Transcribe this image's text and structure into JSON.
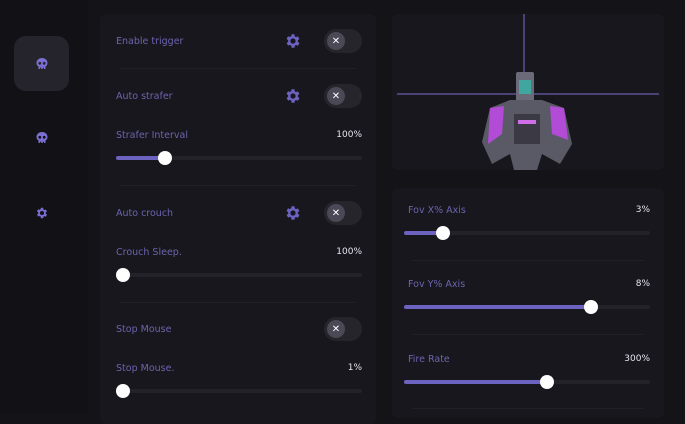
{
  "accent": "#6c62bf",
  "sidebar": {
    "items": [
      {
        "icon": "skull-icon",
        "active": true
      },
      {
        "icon": "skull-icon",
        "active": false
      },
      {
        "icon": "gear-icon",
        "active": false
      }
    ]
  },
  "left": {
    "enable_trigger": {
      "label": "Enable trigger",
      "on": false
    },
    "auto_strafer": {
      "label": "Auto strafer",
      "on": false
    },
    "strafer_interval": {
      "label": "Strafer Interval",
      "value": "100%",
      "fraction": 0.2
    },
    "auto_crouch": {
      "label": "Auto crouch",
      "on": false
    },
    "crouch_sleep": {
      "label": "Crouch Sleep.",
      "value": "100%",
      "fraction": 0
    },
    "stop_mouse": {
      "label": "Stop Mouse",
      "on": false
    },
    "stop_mouse_value": {
      "label": "Stop Mouse.",
      "value": "1%",
      "fraction": 0
    }
  },
  "right": {
    "fov_x": {
      "label": "Fov X% Axis",
      "value": "3%",
      "fraction": 0.16
    },
    "fov_y": {
      "label": "Fov Y% Axis",
      "value": "8%",
      "fraction": 0.76
    },
    "fire_rate": {
      "label": "Fire Rate",
      "value": "300%",
      "fraction": 0.58
    }
  }
}
